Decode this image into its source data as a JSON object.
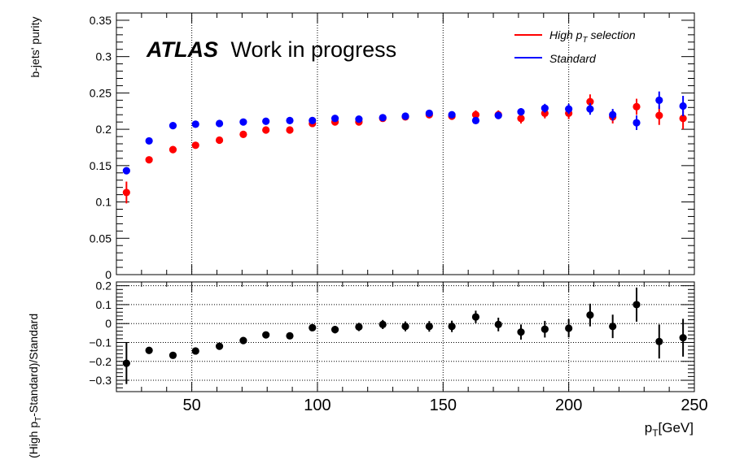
{
  "colors": {
    "high_pt": "#ff0000",
    "standard": "#0000ff",
    "ratio": "#000000",
    "axis": "#000000",
    "grid": "#000000"
  },
  "chart_data": [
    {
      "type": "scatter",
      "title": "",
      "annotation": {
        "bold": "ATLAS",
        "normal": "Work in progress"
      },
      "ylabel": "b-jets' purity",
      "xlim": [
        20,
        250
      ],
      "ylim": [
        0,
        0.36
      ],
      "yticks": [
        0,
        0.05,
        0.1,
        0.15,
        0.2,
        0.25,
        0.3,
        0.35
      ],
      "ytick_labels": [
        "0",
        "0.05",
        "0.1",
        "0.15",
        "0.2",
        "0.25",
        "0.3",
        "0.35"
      ],
      "grid": "x-only",
      "legend_position": "top-right",
      "x": [
        24,
        33,
        42.5,
        51.5,
        61,
        70.5,
        79.5,
        89,
        98,
        107,
        116.5,
        126,
        135,
        144.5,
        153.5,
        163,
        172,
        181,
        190.5,
        200,
        208.5,
        217.5,
        227,
        236,
        245.5
      ],
      "series": [
        {
          "name_main": "High p",
          "name_sub": "T",
          "name_tail": " selection",
          "color": "#ff0000",
          "values": [
            0.113,
            0.158,
            0.172,
            0.178,
            0.185,
            0.193,
            0.199,
            0.199,
            0.208,
            0.21,
            0.21,
            0.215,
            0.217,
            0.22,
            0.218,
            0.22,
            0.22,
            0.215,
            0.222,
            0.222,
            0.238,
            0.217,
            0.231,
            0.219,
            0.215
          ],
          "errors": [
            0.015,
            0.003,
            0.003,
            0.003,
            0.003,
            0.003,
            0.003,
            0.003,
            0.004,
            0.004,
            0.004,
            0.004,
            0.004,
            0.004,
            0.005,
            0.006,
            0.006,
            0.007,
            0.007,
            0.008,
            0.01,
            0.009,
            0.011,
            0.013,
            0.015
          ]
        },
        {
          "name": "Standard",
          "color": "#0000ff",
          "values": [
            0.143,
            0.184,
            0.205,
            0.207,
            0.208,
            0.21,
            0.211,
            0.212,
            0.212,
            0.215,
            0.214,
            0.216,
            0.218,
            0.222,
            0.22,
            0.212,
            0.219,
            0.224,
            0.229,
            0.228,
            0.228,
            0.22,
            0.209,
            0.24,
            0.232
          ],
          "errors": [
            0.003,
            0.002,
            0.002,
            0.002,
            0.002,
            0.002,
            0.002,
            0.002,
            0.002,
            0.003,
            0.003,
            0.003,
            0.003,
            0.003,
            0.003,
            0.004,
            0.004,
            0.005,
            0.006,
            0.007,
            0.008,
            0.008,
            0.01,
            0.012,
            0.014
          ]
        }
      ]
    },
    {
      "type": "scatter",
      "ylabel_main": "(High p",
      "ylabel_sub": "T",
      "ylabel_tail": "-Standard)/Standard",
      "xlabel_main": "p",
      "xlabel_sub": "T",
      "xlabel_tail": "[GeV]",
      "xlim": [
        20,
        250
      ],
      "ylim": [
        -0.36,
        0.22
      ],
      "xticks": [
        50,
        100,
        150,
        200,
        250
      ],
      "xtick_labels": [
        "50",
        "100",
        "150",
        "200",
        "250"
      ],
      "yticks": [
        -0.3,
        -0.2,
        -0.1,
        0,
        0.1,
        0.2
      ],
      "ytick_labels": [
        "−0.3",
        "−0.2",
        "−0.1",
        "0",
        "0.1",
        "0.2"
      ],
      "grid": "both",
      "x": [
        24,
        33,
        42.5,
        51.5,
        61,
        70.5,
        79.5,
        89,
        98,
        107,
        116.5,
        126,
        135,
        144.5,
        153.5,
        163,
        172,
        181,
        190.5,
        200,
        208.5,
        217.5,
        227,
        236,
        245.5
      ],
      "series": [
        {
          "color": "#000000",
          "values": [
            -0.21,
            -0.142,
            -0.168,
            -0.145,
            -0.12,
            -0.09,
            -0.06,
            -0.065,
            -0.022,
            -0.032,
            -0.018,
            -0.005,
            -0.015,
            -0.015,
            -0.015,
            0.035,
            -0.005,
            -0.045,
            -0.03,
            -0.025,
            0.045,
            -0.015,
            0.1,
            -0.095,
            -0.075
          ],
          "errors": [
            0.11,
            0.015,
            0.015,
            0.015,
            0.015,
            0.015,
            0.016,
            0.016,
            0.018,
            0.02,
            0.022,
            0.024,
            0.026,
            0.028,
            0.03,
            0.033,
            0.036,
            0.04,
            0.044,
            0.048,
            0.06,
            0.062,
            0.09,
            0.09,
            0.1
          ]
        }
      ]
    }
  ]
}
